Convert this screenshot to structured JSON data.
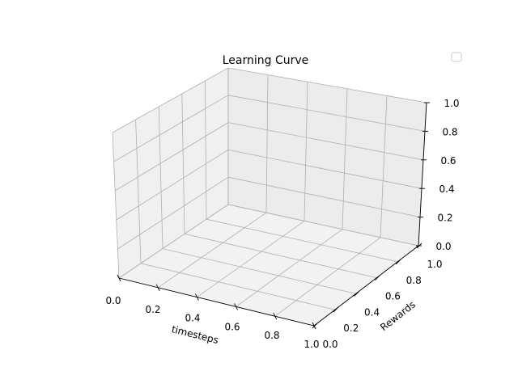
{
  "chart_data": {
    "type": "line",
    "projection": "3d",
    "title": "Learning Curve",
    "xlabel": "timesteps",
    "ylabel": "Rewards",
    "zlabel": "",
    "xlim": [
      0.0,
      1.0
    ],
    "ylim": [
      0.0,
      1.0
    ],
    "zlim": [
      0.0,
      1.0
    ],
    "x_ticks": [
      "0.0",
      "0.2",
      "0.4",
      "0.6",
      "0.8",
      "1.0"
    ],
    "y_ticks": [
      "0.0",
      "0.2",
      "0.4",
      "0.6",
      "0.8",
      "1.0"
    ],
    "z_ticks": [
      "0.0",
      "0.2",
      "0.4",
      "0.6",
      "0.8",
      "1.0"
    ],
    "series": [],
    "grid": true,
    "legend": {
      "placement": "top-right",
      "entries": []
    },
    "colors": {
      "pane_floor": "#f2f2f2",
      "pane_back": "#ececec",
      "pane_side": "#f0f0f0",
      "grid": "#b0b0b0",
      "legend_border": "#cccccc"
    }
  }
}
